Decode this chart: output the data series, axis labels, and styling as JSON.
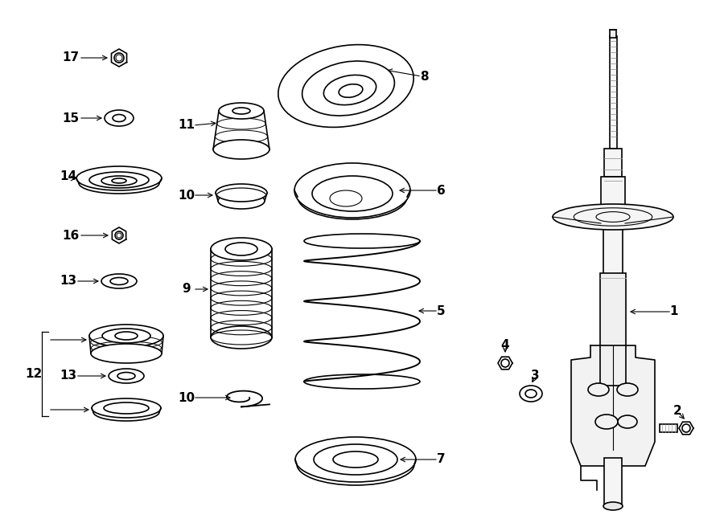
{
  "background_color": "#ffffff",
  "line_color": "#000000",
  "line_width": 1.2,
  "fig_width": 9.0,
  "fig_height": 6.61,
  "dpi": 100
}
